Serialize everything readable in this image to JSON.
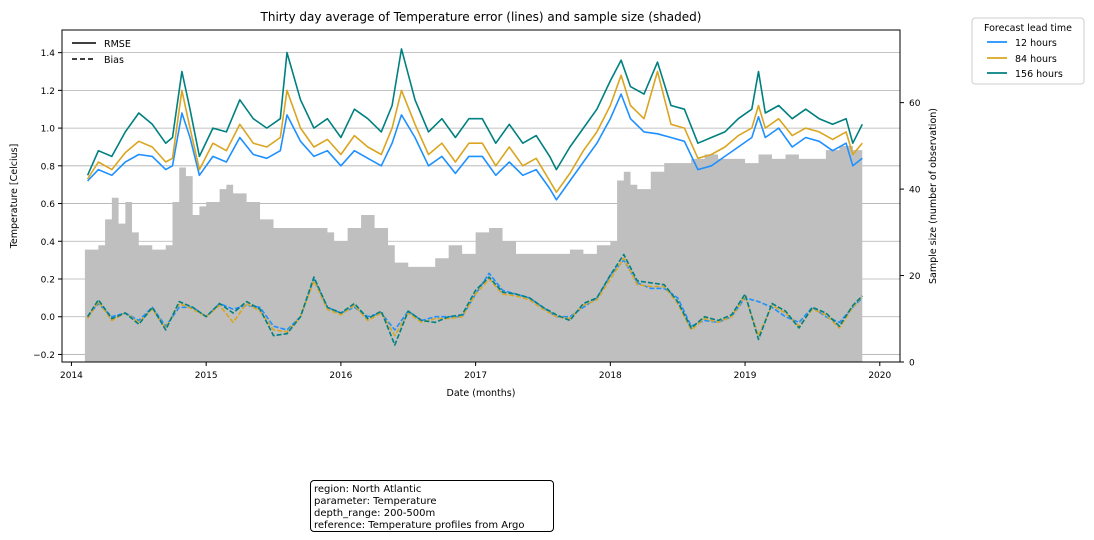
{
  "chart_data": {
    "type": "line",
    "title": "Thirty day average of Temperature error (lines) and sample size (shaded)",
    "xlabel": "Date (months)",
    "ylabel": "Temperature [Celcius]",
    "ylabel_right": "Sample size (number of observation)",
    "xlim": [
      2013.93,
      2020.15
    ],
    "ylim": [
      -0.24,
      1.52
    ],
    "ylim_right": [
      0,
      76.8
    ],
    "x_ticks": [
      2014,
      2015,
      2016,
      2017,
      2018,
      2019,
      2020
    ],
    "y_ticks": [
      -0.2,
      0.0,
      0.2,
      0.4,
      0.6,
      0.8,
      1.0,
      1.2,
      1.4
    ],
    "y_ticks_right": [
      0,
      20,
      40,
      60
    ],
    "grid": "horizontal",
    "linestyle_legend": {
      "position": "top-left",
      "entries": [
        {
          "label": "RMSE",
          "style": "solid"
        },
        {
          "label": "Bias",
          "style": "dashed"
        }
      ]
    },
    "legend": {
      "title": "Forecast lead time",
      "position": "outside-top-right",
      "entries": [
        {
          "label": "12 hours",
          "color": "#1e90ff"
        },
        {
          "label": "84 hours",
          "color": "#daa520"
        },
        {
          "label": "156 hours",
          "color": "#008080"
        }
      ]
    },
    "sample_size": {
      "color": "#bfbfbf",
      "x": [
        2014.1,
        2014.2,
        2014.25,
        2014.3,
        2014.35,
        2014.4,
        2014.45,
        2014.5,
        2014.6,
        2014.7,
        2014.75,
        2014.8,
        2014.85,
        2014.9,
        2014.95,
        2015.0,
        2015.1,
        2015.15,
        2015.2,
        2015.3,
        2015.4,
        2015.5,
        2015.6,
        2015.7,
        2015.8,
        2015.9,
        2015.95,
        2016.05,
        2016.15,
        2016.25,
        2016.35,
        2016.4,
        2016.5,
        2016.6,
        2016.7,
        2016.8,
        2016.9,
        2017.0,
        2017.1,
        2017.2,
        2017.3,
        2017.4,
        2017.5,
        2017.6,
        2017.7,
        2017.8,
        2017.9,
        2017.95,
        2018.0,
        2018.05,
        2018.1,
        2018.15,
        2018.2,
        2018.3,
        2018.4,
        2018.5,
        2018.6,
        2018.7,
        2018.8,
        2018.9,
        2019.0,
        2019.1,
        2019.2,
        2019.3,
        2019.4,
        2019.5,
        2019.6,
        2019.7,
        2019.8,
        2019.87
      ],
      "values": [
        26,
        27,
        33,
        38,
        32,
        37,
        30,
        27,
        26,
        27,
        37,
        45,
        43,
        34,
        36,
        37,
        40,
        41,
        39,
        37,
        33,
        31,
        31,
        31,
        31,
        30,
        28,
        31,
        34,
        31,
        27,
        23,
        22,
        22,
        24,
        27,
        25,
        30,
        31,
        28,
        25,
        25,
        25,
        25,
        26,
        25,
        27,
        27,
        28,
        42,
        44,
        41,
        40,
        44,
        46,
        46,
        47,
        48,
        47,
        47,
        46,
        48,
        47,
        48,
        47,
        47,
        49,
        50,
        49,
        48
      ]
    },
    "series": [
      {
        "name": "12 hours",
        "metric": "RMSE",
        "x": [
          2014.12,
          2014.2,
          2014.3,
          2014.4,
          2014.5,
          2014.6,
          2014.7,
          2014.75,
          2014.82,
          2014.88,
          2014.95,
          2015.05,
          2015.15,
          2015.25,
          2015.35,
          2015.45,
          2015.55,
          2015.6,
          2015.7,
          2015.8,
          2015.9,
          2016.0,
          2016.1,
          2016.2,
          2016.3,
          2016.38,
          2016.45,
          2016.55,
          2016.65,
          2016.75,
          2016.85,
          2016.95,
          2017.05,
          2017.15,
          2017.25,
          2017.35,
          2017.45,
          2017.55,
          2017.6,
          2017.7,
          2017.8,
          2017.9,
          2018.0,
          2018.08,
          2018.15,
          2018.25,
          2018.35,
          2018.45,
          2018.55,
          2018.65,
          2018.75,
          2018.85,
          2018.95,
          2019.05,
          2019.1,
          2019.15,
          2019.25,
          2019.35,
          2019.45,
          2019.55,
          2019.65,
          2019.75,
          2019.8,
          2019.87
        ],
        "values": [
          0.72,
          0.78,
          0.75,
          0.82,
          0.86,
          0.85,
          0.78,
          0.8,
          1.08,
          0.95,
          0.75,
          0.85,
          0.82,
          0.95,
          0.86,
          0.84,
          0.88,
          1.07,
          0.93,
          0.85,
          0.88,
          0.8,
          0.88,
          0.84,
          0.8,
          0.92,
          1.07,
          0.95,
          0.8,
          0.85,
          0.76,
          0.85,
          0.85,
          0.75,
          0.82,
          0.75,
          0.78,
          0.68,
          0.62,
          0.72,
          0.82,
          0.92,
          1.05,
          1.18,
          1.05,
          0.98,
          0.97,
          0.95,
          0.93,
          0.78,
          0.8,
          0.85,
          0.9,
          0.95,
          1.06,
          0.95,
          1.0,
          0.9,
          0.95,
          0.93,
          0.88,
          0.92,
          0.8,
          0.84
        ]
      },
      {
        "name": "84 hours",
        "metric": "RMSE",
        "x": [
          2014.12,
          2014.2,
          2014.3,
          2014.4,
          2014.5,
          2014.6,
          2014.7,
          2014.75,
          2014.82,
          2014.88,
          2014.95,
          2015.05,
          2015.15,
          2015.25,
          2015.35,
          2015.45,
          2015.55,
          2015.6,
          2015.7,
          2015.8,
          2015.9,
          2016.0,
          2016.1,
          2016.2,
          2016.3,
          2016.38,
          2016.45,
          2016.55,
          2016.65,
          2016.75,
          2016.85,
          2016.95,
          2017.05,
          2017.15,
          2017.25,
          2017.35,
          2017.45,
          2017.55,
          2017.6,
          2017.7,
          2017.8,
          2017.9,
          2018.0,
          2018.08,
          2018.15,
          2018.25,
          2018.35,
          2018.45,
          2018.55,
          2018.65,
          2018.75,
          2018.85,
          2018.95,
          2019.05,
          2019.1,
          2019.15,
          2019.25,
          2019.35,
          2019.45,
          2019.55,
          2019.65,
          2019.75,
          2019.8,
          2019.87
        ],
        "values": [
          0.73,
          0.82,
          0.78,
          0.87,
          0.93,
          0.9,
          0.82,
          0.84,
          1.2,
          1.0,
          0.78,
          0.92,
          0.88,
          1.02,
          0.92,
          0.9,
          0.95,
          1.2,
          1.0,
          0.9,
          0.94,
          0.86,
          0.96,
          0.9,
          0.86,
          1.0,
          1.2,
          1.02,
          0.86,
          0.92,
          0.82,
          0.92,
          0.92,
          0.8,
          0.9,
          0.8,
          0.84,
          0.72,
          0.66,
          0.76,
          0.88,
          0.98,
          1.12,
          1.28,
          1.12,
          1.05,
          1.3,
          1.02,
          1.0,
          0.84,
          0.86,
          0.9,
          0.96,
          1.0,
          1.12,
          1.0,
          1.05,
          0.96,
          1.0,
          0.98,
          0.94,
          0.98,
          0.86,
          0.92
        ]
      },
      {
        "name": "156 hours",
        "metric": "RMSE",
        "x": [
          2014.12,
          2014.2,
          2014.3,
          2014.4,
          2014.5,
          2014.6,
          2014.7,
          2014.75,
          2014.82,
          2014.88,
          2014.95,
          2015.05,
          2015.15,
          2015.25,
          2015.35,
          2015.45,
          2015.55,
          2015.6,
          2015.7,
          2015.8,
          2015.9,
          2016.0,
          2016.1,
          2016.2,
          2016.3,
          2016.38,
          2016.45,
          2016.55,
          2016.65,
          2016.75,
          2016.85,
          2016.95,
          2017.05,
          2017.15,
          2017.25,
          2017.35,
          2017.45,
          2017.55,
          2017.6,
          2017.7,
          2017.8,
          2017.9,
          2018.0,
          2018.08,
          2018.15,
          2018.25,
          2018.35,
          2018.45,
          2018.55,
          2018.65,
          2018.75,
          2018.85,
          2018.95,
          2019.05,
          2019.1,
          2019.15,
          2019.25,
          2019.35,
          2019.45,
          2019.55,
          2019.65,
          2019.75,
          2019.8,
          2019.87
        ],
        "values": [
          0.75,
          0.88,
          0.85,
          0.98,
          1.08,
          1.02,
          0.92,
          0.95,
          1.3,
          1.1,
          0.85,
          1.0,
          0.98,
          1.15,
          1.05,
          1.0,
          1.05,
          1.4,
          1.15,
          1.0,
          1.05,
          0.95,
          1.1,
          1.05,
          0.98,
          1.12,
          1.42,
          1.15,
          0.98,
          1.05,
          0.95,
          1.05,
          1.05,
          0.92,
          1.02,
          0.92,
          0.96,
          0.85,
          0.78,
          0.9,
          1.0,
          1.1,
          1.25,
          1.36,
          1.22,
          1.18,
          1.35,
          1.12,
          1.1,
          0.92,
          0.95,
          0.98,
          1.05,
          1.1,
          1.3,
          1.08,
          1.12,
          1.05,
          1.1,
          1.05,
          1.02,
          1.05,
          0.92,
          1.02
        ]
      },
      {
        "name": "12 hours",
        "metric": "Bias",
        "x": [
          2014.12,
          2014.2,
          2014.3,
          2014.4,
          2014.5,
          2014.6,
          2014.7,
          2014.8,
          2014.9,
          2015.0,
          2015.1,
          2015.2,
          2015.3,
          2015.4,
          2015.5,
          2015.6,
          2015.7,
          2015.8,
          2015.9,
          2016.0,
          2016.1,
          2016.2,
          2016.3,
          2016.4,
          2016.5,
          2016.6,
          2016.7,
          2016.8,
          2016.9,
          2017.0,
          2017.1,
          2017.2,
          2017.3,
          2017.4,
          2017.5,
          2017.6,
          2017.7,
          2017.8,
          2017.9,
          2018.0,
          2018.1,
          2018.2,
          2018.3,
          2018.4,
          2018.5,
          2018.6,
          2018.7,
          2018.8,
          2018.9,
          2019.0,
          2019.1,
          2019.2,
          2019.3,
          2019.4,
          2019.5,
          2019.6,
          2019.7,
          2019.8,
          2019.87
        ],
        "values": [
          0.0,
          0.07,
          0.0,
          0.02,
          -0.02,
          0.05,
          -0.05,
          0.05,
          0.05,
          0.0,
          0.07,
          0.04,
          0.06,
          0.05,
          -0.05,
          -0.07,
          0.0,
          0.2,
          0.05,
          0.02,
          0.05,
          0.0,
          0.02,
          -0.07,
          0.03,
          -0.02,
          0.0,
          0.0,
          0.0,
          0.12,
          0.23,
          0.14,
          0.12,
          0.1,
          0.05,
          0.0,
          0.0,
          0.05,
          0.1,
          0.22,
          0.3,
          0.18,
          0.15,
          0.15,
          0.1,
          -0.05,
          -0.02,
          -0.03,
          0.0,
          0.1,
          0.08,
          0.05,
          0.0,
          -0.03,
          0.05,
          0.0,
          -0.03,
          0.05,
          0.1
        ]
      },
      {
        "name": "84 hours",
        "metric": "Bias",
        "x": [
          2014.12,
          2014.2,
          2014.3,
          2014.4,
          2014.5,
          2014.6,
          2014.7,
          2014.8,
          2014.9,
          2015.0,
          2015.1,
          2015.2,
          2015.3,
          2015.4,
          2015.5,
          2015.6,
          2015.7,
          2015.8,
          2015.9,
          2016.0,
          2016.1,
          2016.2,
          2016.3,
          2016.4,
          2016.5,
          2016.6,
          2016.7,
          2016.8,
          2016.9,
          2017.0,
          2017.1,
          2017.2,
          2017.3,
          2017.4,
          2017.5,
          2017.6,
          2017.7,
          2017.8,
          2017.9,
          2018.0,
          2018.1,
          2018.2,
          2018.3,
          2018.4,
          2018.5,
          2018.6,
          2018.7,
          2018.8,
          2018.9,
          2019.0,
          2019.1,
          2019.2,
          2019.3,
          2019.4,
          2019.5,
          2019.6,
          2019.7,
          2019.8,
          2019.87
        ],
        "values": [
          -0.01,
          0.08,
          -0.02,
          0.02,
          -0.03,
          0.04,
          -0.06,
          0.07,
          0.04,
          0.0,
          0.06,
          -0.03,
          0.07,
          0.03,
          -0.07,
          -0.08,
          0.0,
          0.19,
          0.04,
          0.01,
          0.06,
          -0.02,
          0.02,
          -0.1,
          0.02,
          -0.03,
          -0.01,
          -0.01,
          0.0,
          0.12,
          0.2,
          0.12,
          0.11,
          0.09,
          0.04,
          0.0,
          -0.01,
          0.06,
          0.09,
          0.2,
          0.31,
          0.17,
          0.16,
          0.16,
          0.07,
          -0.07,
          -0.01,
          -0.03,
          0.0,
          0.11,
          -0.1,
          0.06,
          0.02,
          -0.05,
          0.04,
          0.01,
          -0.06,
          0.05,
          0.11
        ]
      },
      {
        "name": "156 hours",
        "metric": "Bias",
        "x": [
          2014.12,
          2014.2,
          2014.3,
          2014.4,
          2014.5,
          2014.6,
          2014.7,
          2014.8,
          2014.9,
          2015.0,
          2015.1,
          2015.2,
          2015.3,
          2015.4,
          2015.5,
          2015.6,
          2015.7,
          2015.8,
          2015.9,
          2016.0,
          2016.1,
          2016.2,
          2016.3,
          2016.4,
          2016.5,
          2016.6,
          2016.7,
          2016.8,
          2016.9,
          2017.0,
          2017.1,
          2017.2,
          2017.3,
          2017.4,
          2017.5,
          2017.6,
          2017.7,
          2017.8,
          2017.9,
          2018.0,
          2018.1,
          2018.2,
          2018.3,
          2018.4,
          2018.5,
          2018.6,
          2018.7,
          2018.8,
          2018.9,
          2019.0,
          2019.1,
          2019.2,
          2019.3,
          2019.4,
          2019.5,
          2019.6,
          2019.7,
          2019.8,
          2019.87
        ],
        "values": [
          0.0,
          0.09,
          -0.01,
          0.02,
          -0.04,
          0.05,
          -0.07,
          0.08,
          0.05,
          0.0,
          0.07,
          0.02,
          0.08,
          0.04,
          -0.1,
          -0.09,
          0.0,
          0.21,
          0.05,
          0.02,
          0.07,
          -0.01,
          0.03,
          -0.15,
          0.03,
          -0.02,
          -0.03,
          0.0,
          0.01,
          0.14,
          0.21,
          0.13,
          0.12,
          0.1,
          0.05,
          0.01,
          -0.02,
          0.07,
          0.1,
          0.22,
          0.33,
          0.19,
          0.18,
          0.17,
          0.08,
          -0.06,
          0.0,
          -0.02,
          0.01,
          0.12,
          -0.12,
          0.07,
          0.03,
          -0.06,
          0.05,
          0.02,
          -0.05,
          0.06,
          0.11
        ]
      }
    ]
  },
  "info_box": {
    "line1": "region: North Atlantic",
    "line2": "parameter: Temperature",
    "line3": "depth_range: 200-500m",
    "line4": "reference: Temperature profiles from Argo"
  }
}
